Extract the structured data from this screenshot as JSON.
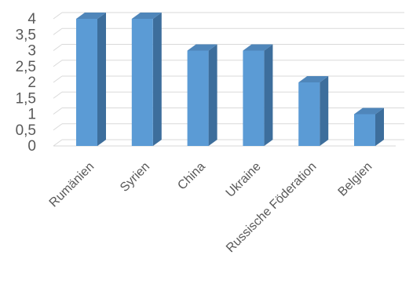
{
  "chart_data": {
    "type": "bar",
    "categories": [
      "Rumänien",
      "Syrien",
      "China",
      "Ukraine",
      "Russische Föderation",
      "Belgien"
    ],
    "values": [
      4,
      4,
      3,
      3,
      2,
      1
    ],
    "y_tick_labels": [
      "0",
      "0,5",
      "1",
      "1,5",
      "2",
      "2,5",
      "3",
      "3,5",
      "4"
    ],
    "ylim": [
      0,
      4
    ],
    "grid": true,
    "legend": "none",
    "three_d": true,
    "colors": {
      "bar_front": "#5b9bd5",
      "bar_side": "#3d6e9c",
      "bar_top": "#4f86ba",
      "grid": "#d9d9d9",
      "text": "#595959"
    }
  }
}
